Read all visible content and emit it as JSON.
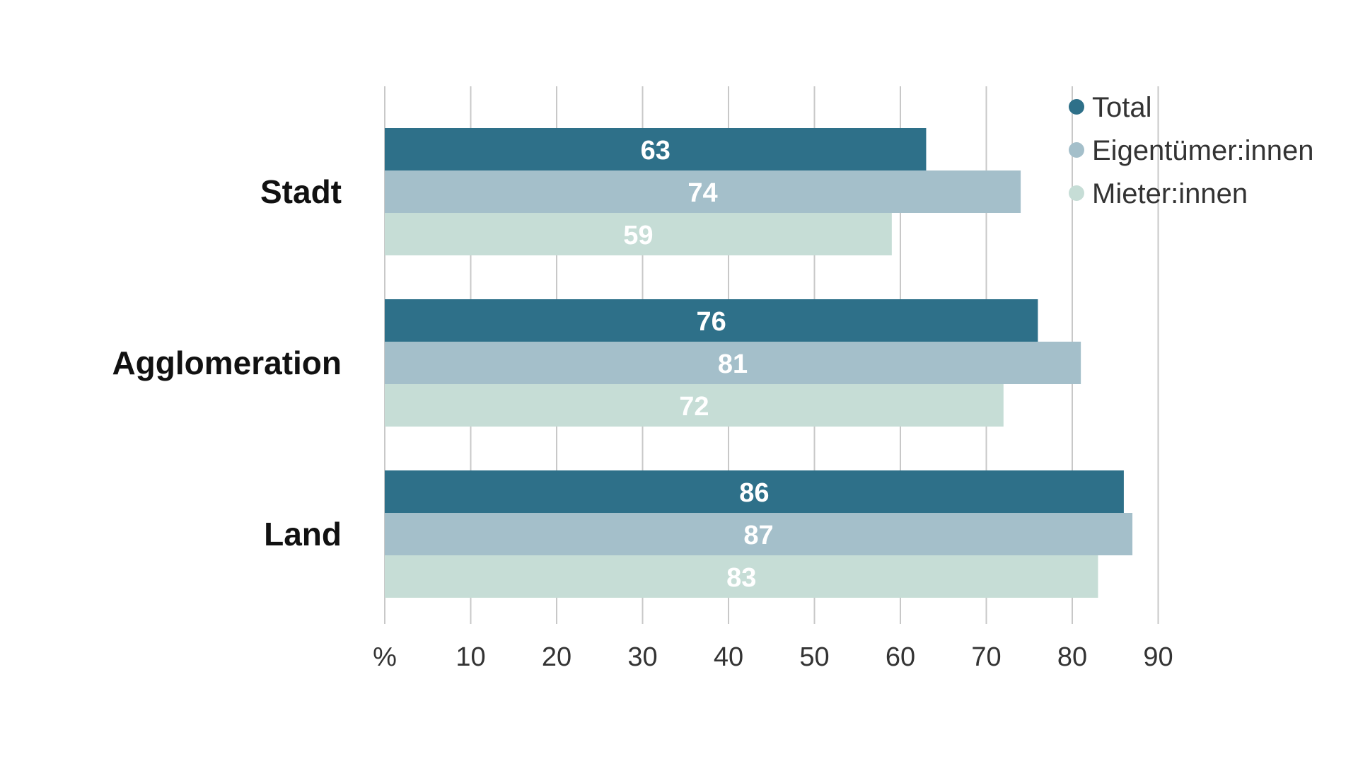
{
  "chart_data": {
    "type": "bar",
    "orientation": "horizontal",
    "categories": [
      "Stadt",
      "Agglomeration",
      "Land"
    ],
    "series": [
      {
        "name": "Total",
        "values": [
          63,
          76,
          86
        ]
      },
      {
        "name": "Eigentümer:innen",
        "values": [
          74,
          81,
          87
        ]
      },
      {
        "name": "Mieter:innen",
        "values": [
          59,
          72,
          83
        ]
      }
    ],
    "xlim": [
      0,
      90
    ],
    "x_ticks": [
      "%",
      "10",
      "20",
      "30",
      "40",
      "50",
      "60",
      "70",
      "80",
      "90"
    ],
    "grid": true,
    "legend": "top-right",
    "data_labels": true
  },
  "colors": {
    "series": [
      "#2e7089",
      "#a4bfca",
      "#c6ddd6"
    ],
    "label_text": "#ffffff",
    "grid": "#c8c8c8",
    "category_text": "#111111",
    "tick_text": "#333333"
  }
}
